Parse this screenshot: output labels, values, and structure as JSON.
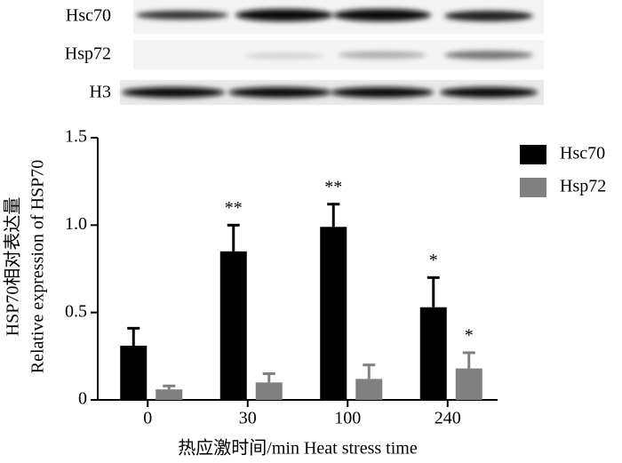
{
  "chart_data": {
    "type": "bar",
    "blots": [
      "Hsc70",
      "Hsp72",
      "H3"
    ],
    "y_label_lines": [
      "HSP70相对表达量",
      "Relative expression of HSP70"
    ],
    "x_label": "热应激时间/min  Heat stress time",
    "categories": [
      "0",
      "30",
      "100",
      "240"
    ],
    "series": [
      {
        "name": "Hsc70",
        "color": "#000000",
        "values": [
          0.31,
          0.85,
          0.99,
          0.53
        ],
        "errors": [
          0.1,
          0.15,
          0.13,
          0.17
        ],
        "significance": [
          null,
          "**",
          "**",
          "*"
        ]
      },
      {
        "name": "Hsp72",
        "color": "#808080",
        "values": [
          0.06,
          0.1,
          0.12,
          0.18
        ],
        "errors": [
          0.02,
          0.05,
          0.08,
          0.09
        ],
        "significance": [
          null,
          null,
          null,
          "*"
        ]
      }
    ],
    "ylim": [
      0,
      1.5
    ],
    "yticks": [
      0,
      0.5,
      {
        "value": 1,
        "label": "1.0"
      },
      1.5
    ]
  }
}
